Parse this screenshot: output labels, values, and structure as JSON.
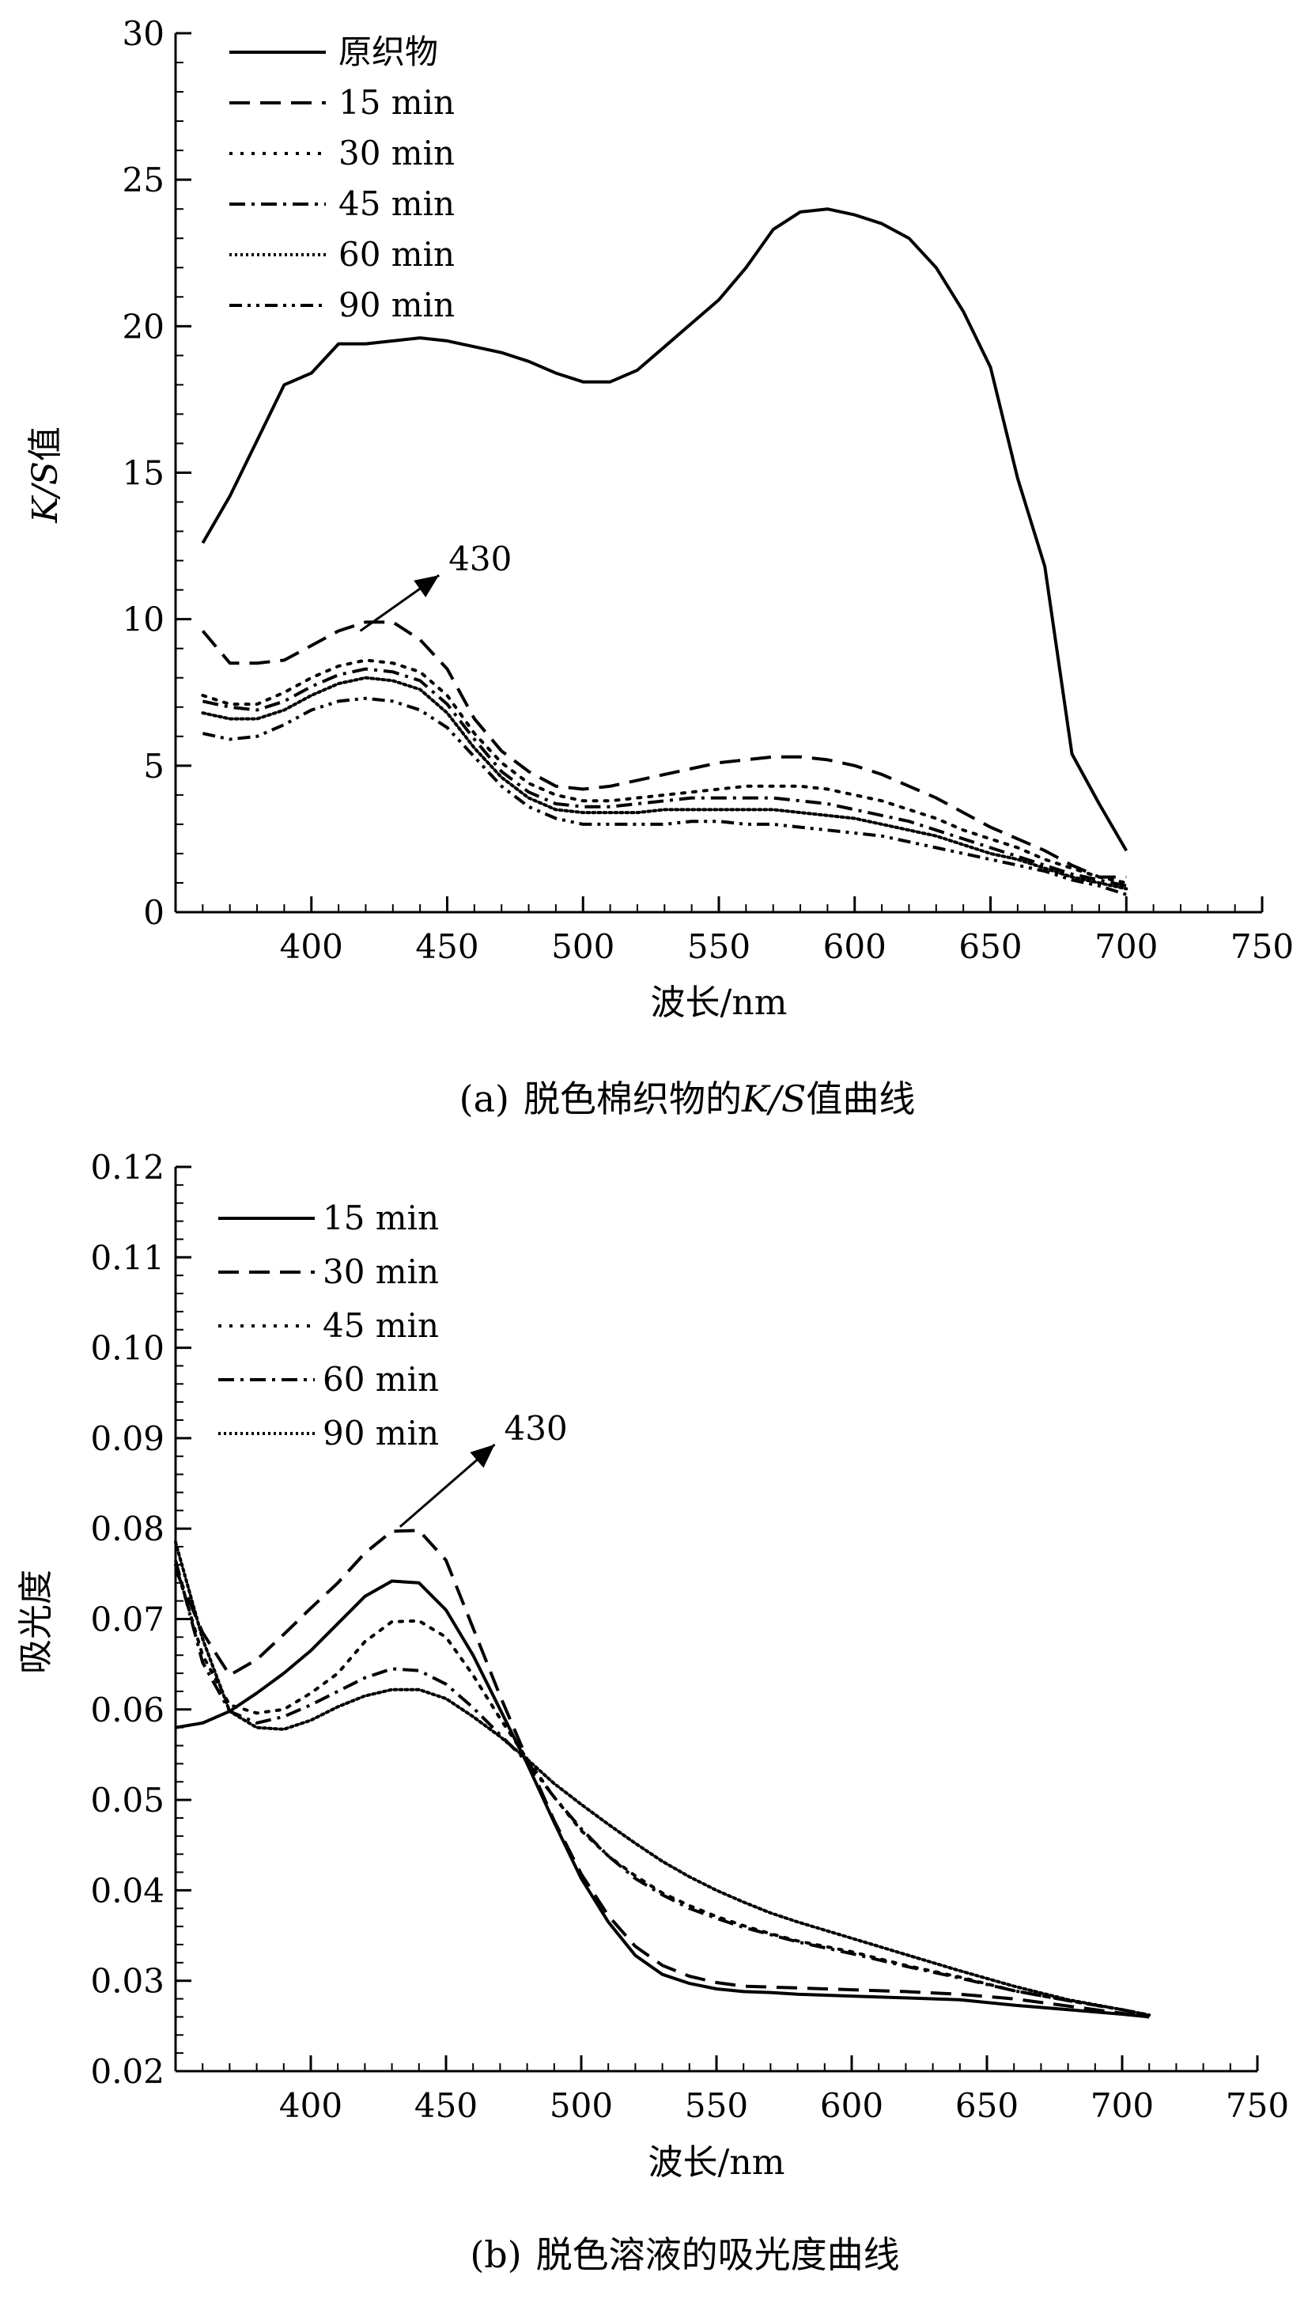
{
  "chart_data": [
    {
      "type": "line",
      "panel": "a",
      "caption_prefix": "(a)",
      "caption_main": "脱色棉织物的",
      "caption_italic": "K/S",
      "caption_suffix": "值曲线",
      "xlabel": "波长/nm",
      "ylabel_italic": "K/S",
      "ylabel_suffix": "值",
      "xlim": [
        350,
        750
      ],
      "ylim": [
        0,
        30
      ],
      "xticks": [
        400,
        450,
        500,
        550,
        600,
        650,
        700,
        750
      ],
      "yticks": [
        0,
        5,
        10,
        15,
        20,
        25,
        30
      ],
      "ytick_labels": [
        "0",
        "5",
        "10",
        "15",
        "20",
        "25",
        "30"
      ],
      "legend_position": "top-left",
      "annotation": {
        "text": "430",
        "from": [
          418,
          9.6
        ],
        "to": [
          447,
          11.5
        ]
      },
      "series": [
        {
          "name": "原织物",
          "style": "solid",
          "x": [
            360,
            370,
            380,
            390,
            400,
            410,
            420,
            430,
            440,
            450,
            460,
            470,
            480,
            490,
            500,
            510,
            520,
            530,
            540,
            550,
            560,
            570,
            580,
            590,
            600,
            610,
            620,
            630,
            640,
            650,
            660,
            670,
            680,
            690,
            700
          ],
          "y": [
            12.6,
            14.2,
            16.1,
            18.0,
            18.4,
            19.4,
            19.4,
            19.5,
            19.6,
            19.5,
            19.3,
            19.1,
            18.8,
            18.4,
            18.1,
            18.1,
            18.5,
            19.3,
            20.1,
            20.9,
            22.0,
            23.3,
            23.9,
            24.0,
            23.8,
            23.5,
            23.0,
            22.0,
            20.5,
            18.6,
            14.8,
            11.8,
            5.4,
            3.7,
            2.1
          ]
        },
        {
          "name": "15 min",
          "style": "dash",
          "x": [
            360,
            370,
            380,
            390,
            400,
            410,
            420,
            430,
            440,
            450,
            460,
            470,
            480,
            490,
            500,
            510,
            520,
            530,
            540,
            550,
            560,
            570,
            580,
            590,
            600,
            610,
            620,
            630,
            640,
            650,
            660,
            670,
            680,
            690,
            700
          ],
          "y": [
            9.6,
            8.5,
            8.5,
            8.6,
            9.1,
            9.6,
            9.9,
            9.9,
            9.3,
            8.3,
            6.6,
            5.5,
            4.8,
            4.3,
            4.2,
            4.3,
            4.5,
            4.7,
            4.9,
            5.1,
            5.2,
            5.3,
            5.3,
            5.2,
            5.0,
            4.7,
            4.3,
            3.9,
            3.4,
            2.9,
            2.5,
            2.1,
            1.6,
            1.2,
            1.2
          ]
        },
        {
          "name": "30 min",
          "style": "dot",
          "x": [
            360,
            370,
            380,
            390,
            400,
            410,
            420,
            430,
            440,
            450,
            460,
            470,
            480,
            490,
            500,
            510,
            520,
            530,
            540,
            550,
            560,
            570,
            580,
            590,
            600,
            610,
            620,
            630,
            640,
            650,
            660,
            670,
            680,
            690,
            700
          ],
          "y": [
            7.4,
            7.1,
            7.1,
            7.5,
            8.0,
            8.4,
            8.6,
            8.5,
            8.2,
            7.4,
            6.1,
            5.1,
            4.4,
            4.0,
            3.8,
            3.8,
            3.9,
            4.0,
            4.1,
            4.2,
            4.3,
            4.3,
            4.3,
            4.2,
            4.0,
            3.8,
            3.5,
            3.2,
            2.8,
            2.5,
            2.2,
            1.8,
            1.5,
            1.2,
            1.0
          ]
        },
        {
          "name": "45 min",
          "style": "dashdot",
          "x": [
            360,
            370,
            380,
            390,
            400,
            410,
            420,
            430,
            440,
            450,
            460,
            470,
            480,
            490,
            500,
            510,
            520,
            530,
            540,
            550,
            560,
            570,
            580,
            590,
            600,
            610,
            620,
            630,
            640,
            650,
            660,
            670,
            680,
            690,
            700
          ],
          "y": [
            7.2,
            7.0,
            6.9,
            7.2,
            7.7,
            8.1,
            8.3,
            8.2,
            7.9,
            7.1,
            5.9,
            4.8,
            4.1,
            3.7,
            3.6,
            3.6,
            3.7,
            3.8,
            3.9,
            3.9,
            3.9,
            3.9,
            3.8,
            3.7,
            3.5,
            3.3,
            3.1,
            2.8,
            2.5,
            2.2,
            1.9,
            1.6,
            1.3,
            1.1,
            0.9
          ]
        },
        {
          "name": "60 min",
          "style": "fine-dot",
          "x": [
            360,
            370,
            380,
            390,
            400,
            410,
            420,
            430,
            440,
            450,
            460,
            470,
            480,
            490,
            500,
            510,
            520,
            530,
            540,
            550,
            560,
            570,
            580,
            590,
            600,
            610,
            620,
            630,
            640,
            650,
            660,
            670,
            680,
            690,
            700
          ],
          "y": [
            6.8,
            6.6,
            6.6,
            6.9,
            7.4,
            7.8,
            8.0,
            7.9,
            7.6,
            6.8,
            5.6,
            4.6,
            3.9,
            3.5,
            3.4,
            3.4,
            3.4,
            3.5,
            3.5,
            3.5,
            3.5,
            3.5,
            3.4,
            3.3,
            3.2,
            3.0,
            2.8,
            2.6,
            2.3,
            2.0,
            1.8,
            1.5,
            1.2,
            1.0,
            0.8
          ]
        },
        {
          "name": "90 min",
          "style": "dashdotdot",
          "x": [
            360,
            370,
            380,
            390,
            400,
            410,
            420,
            430,
            440,
            450,
            460,
            470,
            480,
            490,
            500,
            510,
            520,
            530,
            540,
            550,
            560,
            570,
            580,
            590,
            600,
            610,
            620,
            630,
            640,
            650,
            660,
            670,
            680,
            690,
            700
          ],
          "y": [
            6.1,
            5.9,
            6.0,
            6.4,
            6.9,
            7.2,
            7.3,
            7.2,
            6.9,
            6.3,
            5.3,
            4.3,
            3.6,
            3.2,
            3.0,
            3.0,
            3.0,
            3.0,
            3.1,
            3.1,
            3.0,
            3.0,
            2.9,
            2.8,
            2.7,
            2.6,
            2.4,
            2.2,
            2.0,
            1.8,
            1.6,
            1.4,
            1.1,
            0.9,
            0.6
          ]
        }
      ]
    },
    {
      "type": "line",
      "panel": "b",
      "caption_prefix": "(b)",
      "caption_main": "脱色溶液的吸光度曲线",
      "xlabel": "波长/nm",
      "ylabel": "吸光度",
      "xlim": [
        350,
        750
      ],
      "ylim": [
        0.02,
        0.12
      ],
      "xticks": [
        400,
        450,
        500,
        550,
        600,
        650,
        700,
        750
      ],
      "yticks": [
        0.02,
        0.03,
        0.04,
        0.05,
        0.06,
        0.07,
        0.08,
        0.09,
        0.1,
        0.11,
        0.12
      ],
      "ytick_labels": [
        "0.02",
        "0.03",
        "0.04",
        "0.05",
        "0.06",
        "0.07",
        "0.08",
        "0.09",
        "0.10",
        "0.11",
        "0.12"
      ],
      "legend_position": "top-left",
      "annotation": {
        "text": "430",
        "from": [
          433,
          0.0802
        ],
        "to": [
          468,
          0.0893
        ]
      },
      "series": [
        {
          "name": "15 min",
          "style": "solid",
          "x": [
            350,
            360,
            370,
            380,
            390,
            400,
            410,
            420,
            430,
            440,
            450,
            460,
            470,
            480,
            490,
            500,
            510,
            520,
            530,
            540,
            550,
            560,
            570,
            580,
            600,
            620,
            640,
            660,
            680,
            700,
            710
          ],
          "y": [
            0.058,
            0.0585,
            0.0598,
            0.0618,
            0.064,
            0.0665,
            0.0695,
            0.0725,
            0.0742,
            0.074,
            0.071,
            0.066,
            0.06,
            0.054,
            0.0475,
            0.0413,
            0.0365,
            0.0328,
            0.0307,
            0.0297,
            0.0291,
            0.0288,
            0.0287,
            0.0285,
            0.0283,
            0.0281,
            0.0279,
            0.0273,
            0.0268,
            0.0263,
            0.026
          ]
        },
        {
          "name": "30 min",
          "style": "dash",
          "x": [
            350,
            360,
            370,
            380,
            390,
            400,
            410,
            420,
            430,
            440,
            450,
            460,
            470,
            480,
            490,
            500,
            510,
            520,
            530,
            540,
            550,
            560,
            570,
            580,
            600,
            620,
            640,
            660,
            680,
            700,
            710
          ],
          "y": [
            0.0755,
            0.0685,
            0.0638,
            0.0655,
            0.0683,
            0.0712,
            0.074,
            0.0773,
            0.0797,
            0.0798,
            0.0765,
            0.069,
            0.0615,
            0.0545,
            0.0477,
            0.0418,
            0.0372,
            0.0338,
            0.0317,
            0.0305,
            0.0298,
            0.0294,
            0.0293,
            0.0292,
            0.029,
            0.0288,
            0.0285,
            0.028,
            0.0272,
            0.0264,
            0.026
          ]
        },
        {
          "name": "45 min",
          "style": "dot",
          "x": [
            350,
            360,
            370,
            380,
            390,
            400,
            410,
            420,
            430,
            440,
            450,
            460,
            470,
            480,
            490,
            500,
            510,
            520,
            530,
            540,
            550,
            560,
            570,
            580,
            600,
            620,
            640,
            660,
            680,
            700,
            710
          ],
          "y": [
            0.076,
            0.066,
            0.0605,
            0.0596,
            0.06,
            0.0618,
            0.064,
            0.0675,
            0.0697,
            0.0698,
            0.068,
            0.0638,
            0.059,
            0.0545,
            0.0503,
            0.0466,
            0.0438,
            0.0416,
            0.0397,
            0.0383,
            0.0371,
            0.0361,
            0.0352,
            0.0344,
            0.0332,
            0.0317,
            0.0304,
            0.0289,
            0.0278,
            0.0268,
            0.0262
          ]
        },
        {
          "name": "60 min",
          "style": "dashdot",
          "x": [
            350,
            360,
            370,
            380,
            390,
            400,
            410,
            420,
            430,
            440,
            450,
            460,
            470,
            480,
            490,
            500,
            510,
            520,
            530,
            540,
            550,
            560,
            570,
            580,
            600,
            620,
            640,
            660,
            680,
            700,
            710
          ],
          "y": [
            0.0765,
            0.0652,
            0.0598,
            0.0585,
            0.0592,
            0.0605,
            0.062,
            0.0635,
            0.0645,
            0.0643,
            0.0628,
            0.0602,
            0.0572,
            0.0542,
            0.0503,
            0.0468,
            0.0438,
            0.0413,
            0.0395,
            0.038,
            0.0369,
            0.0359,
            0.0351,
            0.0343,
            0.033,
            0.0316,
            0.0303,
            0.0289,
            0.0278,
            0.0268,
            0.0262
          ]
        },
        {
          "name": "90 min",
          "style": "fine-dot",
          "x": [
            350,
            360,
            370,
            380,
            390,
            400,
            410,
            420,
            430,
            440,
            450,
            460,
            470,
            480,
            490,
            500,
            510,
            520,
            530,
            540,
            550,
            560,
            570,
            580,
            600,
            620,
            640,
            660,
            680,
            700,
            710
          ],
          "y": [
            0.0785,
            0.0678,
            0.0598,
            0.058,
            0.0578,
            0.0588,
            0.0603,
            0.0615,
            0.0622,
            0.0622,
            0.0612,
            0.0592,
            0.057,
            0.0545,
            0.0518,
            0.0495,
            0.0473,
            0.0452,
            0.0432,
            0.0415,
            0.04,
            0.0387,
            0.0375,
            0.0365,
            0.0347,
            0.0329,
            0.0311,
            0.0294,
            0.0279,
            0.0268,
            0.0262
          ]
        }
      ]
    }
  ]
}
